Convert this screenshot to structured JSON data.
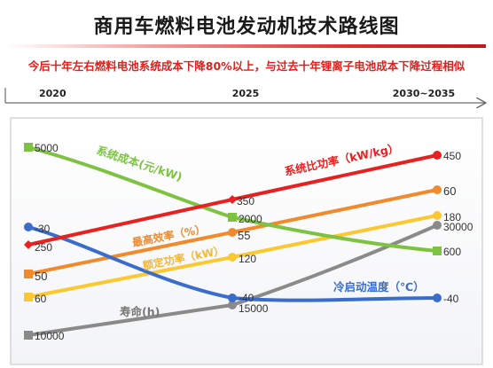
{
  "page": {
    "title": "商用车燃料电池发动机技术路线图",
    "subtitle": "今后十年左右燃料电池系统成本下降80%以上，与过去十年锂离子电池成本下降过程相似"
  },
  "chart_data": {
    "type": "line",
    "categories": [
      "2020",
      "2025",
      "2030~2035"
    ],
    "series": [
      {
        "name": "系统成本(元/kW)",
        "labels": [
          "5000",
          "2000",
          "600"
        ],
        "color": "#7dc241"
      },
      {
        "name": "系统比功率（kW/kg）",
        "labels": [
          "",
          "350",
          "450"
        ],
        "color": "#e8201f"
      },
      {
        "name": "最高效率（%）",
        "labels": [
          "50",
          "55",
          "60"
        ],
        "color": "#f08a2c"
      },
      {
        "name": "额定功率（kW）",
        "labels": [
          "60",
          "120",
          "180"
        ],
        "color": "#fbc832"
      },
      {
        "name": "冷启动温度（℃）",
        "labels": [
          "-30",
          "-40",
          "-40"
        ],
        "color": "#3a6ccc"
      },
      {
        "name": "寿命(h)",
        "labels": [
          "10000",
          "15000",
          "30000"
        ],
        "color": "#8a8a8a"
      }
    ],
    "extra_label": "250",
    "legend": "none",
    "grid": false
  }
}
